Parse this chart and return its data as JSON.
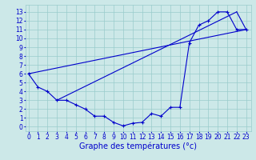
{
  "xlabel": "Graphe des températures (°c)",
  "bg_color": "#cce8e8",
  "line_color": "#0000cc",
  "grid_color": "#99cccc",
  "x_ticks": [
    0,
    1,
    2,
    3,
    4,
    5,
    6,
    7,
    8,
    9,
    10,
    11,
    12,
    13,
    14,
    15,
    16,
    17,
    18,
    19,
    20,
    21,
    22,
    23
  ],
  "y_ticks": [
    0,
    1,
    2,
    3,
    4,
    5,
    6,
    7,
    8,
    9,
    10,
    11,
    12,
    13
  ],
  "xlim": [
    -0.3,
    23.5
  ],
  "ylim": [
    -0.5,
    13.8
  ],
  "temp_curve": [
    [
      0,
      6
    ],
    [
      1,
      4.5
    ],
    [
      2,
      4
    ],
    [
      3,
      3
    ],
    [
      4,
      3
    ],
    [
      5,
      2.5
    ],
    [
      6,
      2
    ],
    [
      7,
      1.2
    ],
    [
      8,
      1.2
    ],
    [
      9,
      0.5
    ],
    [
      10,
      0.1
    ],
    [
      11,
      0.4
    ],
    [
      12,
      0.5
    ],
    [
      13,
      1.5
    ],
    [
      14,
      1.2
    ],
    [
      15,
      2.2
    ],
    [
      16,
      2.2
    ],
    [
      17,
      9.5
    ],
    [
      18,
      11.5
    ],
    [
      19,
      12
    ],
    [
      20,
      13
    ],
    [
      21,
      13
    ],
    [
      22,
      11
    ],
    [
      23,
      11
    ]
  ],
  "diag_line1": [
    [
      0,
      6
    ],
    [
      23,
      11
    ]
  ],
  "diag_line2": [
    [
      3,
      3
    ],
    [
      22,
      13
    ]
  ],
  "close_line": [
    [
      22,
      13
    ],
    [
      23,
      11
    ]
  ],
  "marker_style": "+",
  "marker_size": 3,
  "linewidth": 0.8,
  "tick_fontsize": 5.5,
  "xlabel_fontsize": 7
}
